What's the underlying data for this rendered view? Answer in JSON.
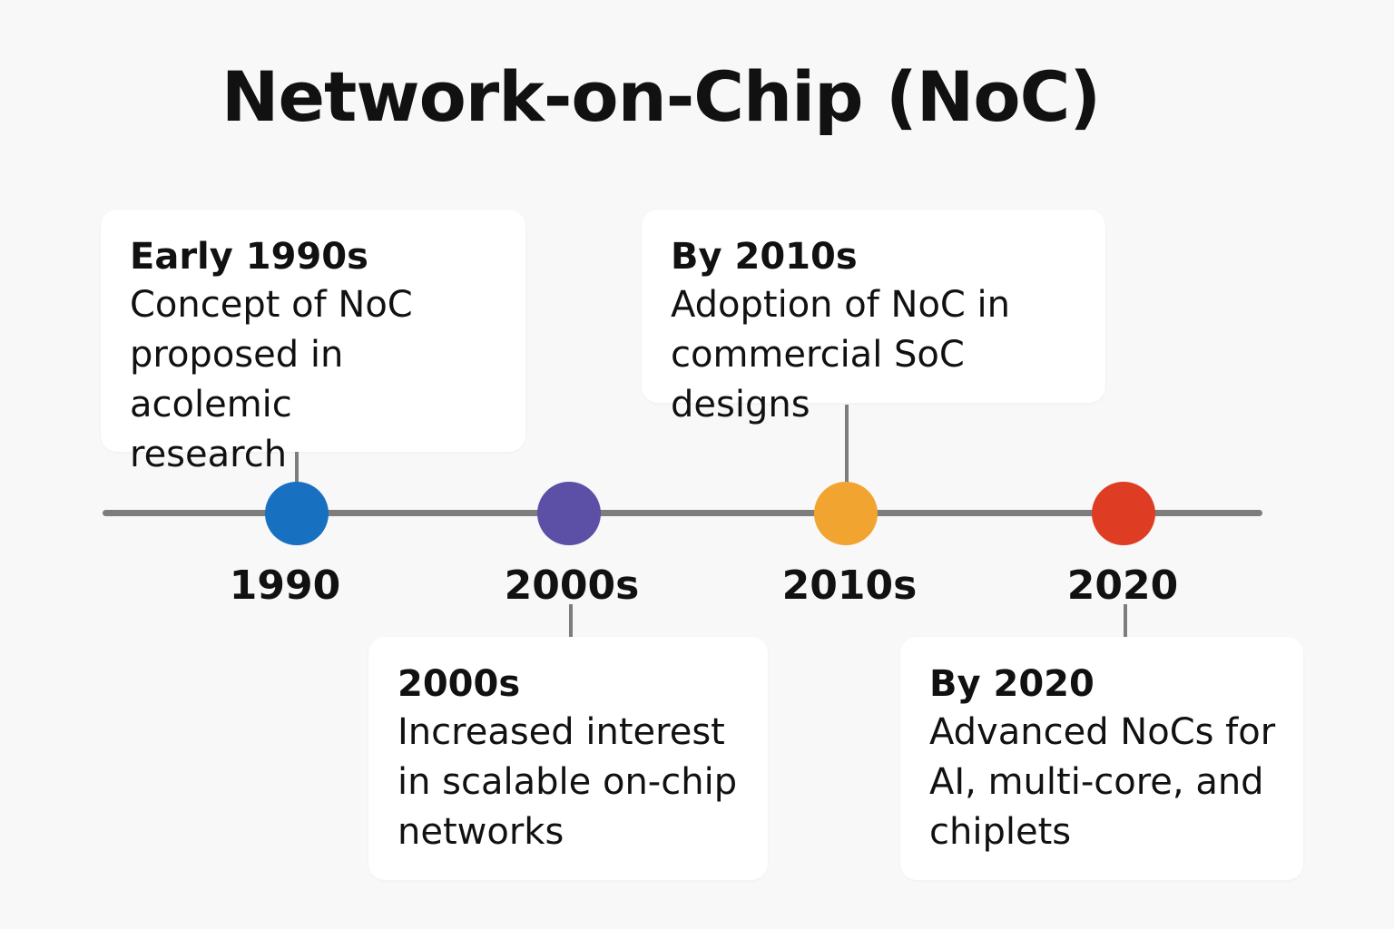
{
  "title": "Network-on-Chip (NoC)",
  "colors": {
    "background": "#f8f8f8",
    "axis": "#7d7d7d",
    "dot_1990": "#1870c0",
    "dot_2000s": "#5b4fa6",
    "dot_2010s": "#f2a431",
    "dot_2020": "#de3d24"
  },
  "timeline": {
    "years": [
      "1990",
      "2000s",
      "2010s",
      "2020"
    ]
  },
  "events": [
    {
      "title": "Early 1990s",
      "lines": [
        "Concept of NoC",
        "proposed in acolemic",
        "research"
      ]
    },
    {
      "title": "2000s",
      "lines": [
        "Increased interest",
        "in scalable on-chip",
        "networks"
      ]
    },
    {
      "title": "By 2010s",
      "lines": [
        "Adoption of NoC in",
        "commercial SoC designs"
      ]
    },
    {
      "title": "By 2020",
      "lines": [
        "Advanced NoCs for",
        "AI, multi-core, and",
        "chiplets"
      ]
    }
  ]
}
